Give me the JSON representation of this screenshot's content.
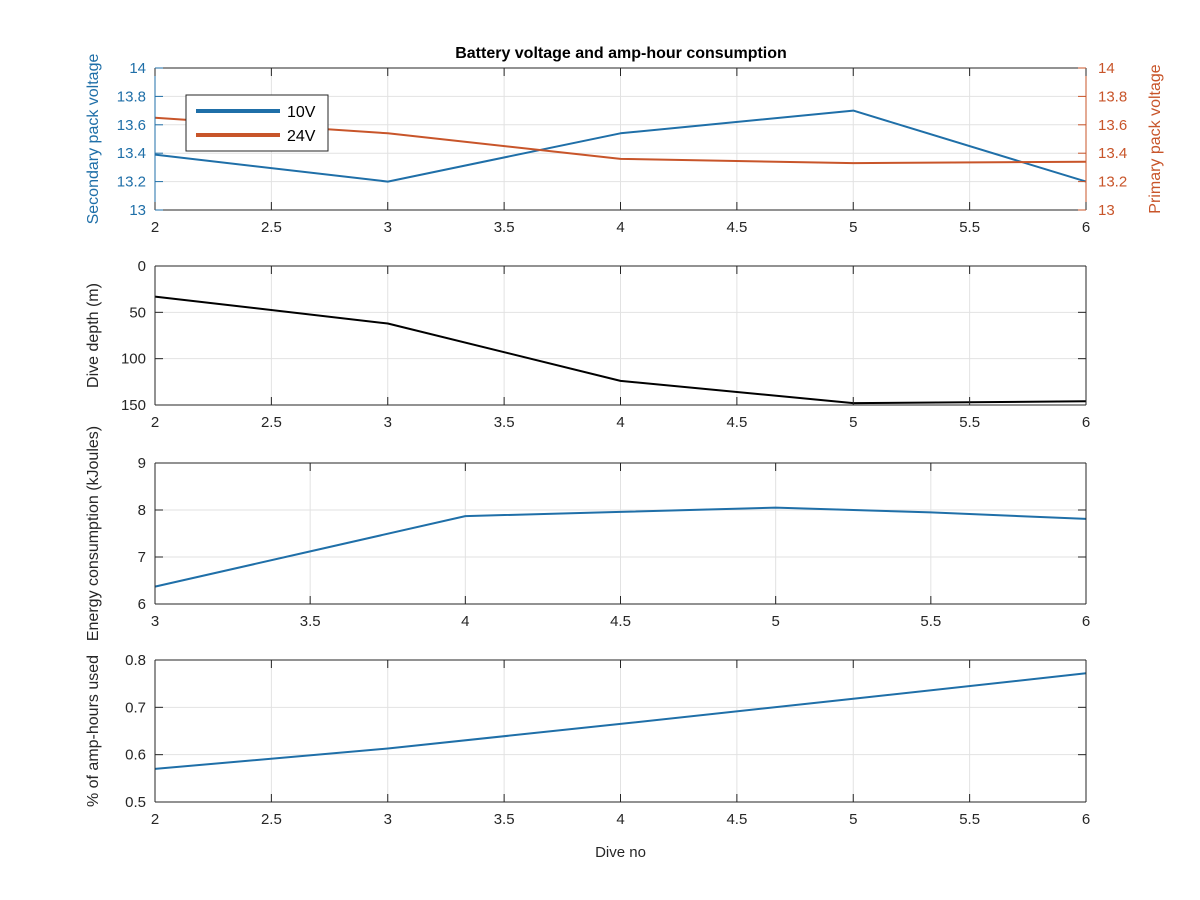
{
  "figure": {
    "background": "#ffffff"
  },
  "chart_data": [
    {
      "type": "line",
      "title": "Battery voltage and amp-hour consumption",
      "xlabel": "",
      "ylabel": "Secondary pack voltage",
      "ylabel_right": "Primary pack voltage",
      "xlim": [
        2,
        6
      ],
      "ylim": [
        13,
        14
      ],
      "ylim_right": [
        13,
        14
      ],
      "xticks": [
        "2",
        "2.5",
        "3",
        "3.5",
        "4",
        "4.5",
        "5",
        "5.5",
        "6"
      ],
      "yticks": [
        "13",
        "13.2",
        "13.4",
        "13.6",
        "13.8",
        "14"
      ],
      "yticks_right": [
        "13",
        "13.2",
        "13.4",
        "13.6",
        "13.8",
        "14"
      ],
      "grid": true,
      "legend": {
        "position": "top-left",
        "entries": [
          "10V",
          "24V"
        ]
      },
      "series": [
        {
          "name": "10V",
          "axis": "left",
          "color": "#1f6fa8",
          "x": [
            2,
            3,
            4,
            5,
            6
          ],
          "values": [
            13.39,
            13.2,
            13.54,
            13.7,
            13.2
          ]
        },
        {
          "name": "24V",
          "axis": "right",
          "color": "#c8552a",
          "x": [
            2,
            3,
            4,
            5,
            6
          ],
          "values": [
            13.65,
            13.54,
            13.36,
            13.33,
            13.34
          ]
        }
      ]
    },
    {
      "type": "line",
      "title": "",
      "xlabel": "",
      "ylabel": "Dive depth (m)",
      "xlim": [
        2,
        6
      ],
      "ylim": [
        0,
        150
      ],
      "y_reversed": true,
      "xticks": [
        "2",
        "2.5",
        "3",
        "3.5",
        "4",
        "4.5",
        "5",
        "5.5",
        "6"
      ],
      "yticks": [
        "0",
        "50",
        "100",
        "150"
      ],
      "grid": true,
      "series": [
        {
          "color": "#000000",
          "x": [
            2,
            3,
            4,
            5,
            6
          ],
          "values": [
            33,
            62,
            124,
            148,
            146
          ]
        }
      ]
    },
    {
      "type": "line",
      "title": "",
      "xlabel": "",
      "ylabel": "Energy consumption (kJoules)",
      "xlim": [
        3,
        6
      ],
      "ylim": [
        6,
        9
      ],
      "xticks": [
        "3",
        "3.5",
        "4",
        "4.5",
        "5",
        "5.5",
        "6"
      ],
      "yticks": [
        "6",
        "7",
        "8",
        "9"
      ],
      "grid": true,
      "series": [
        {
          "color": "#1f6fa8",
          "x": [
            3,
            3.5,
            4,
            4.5,
            5,
            5.5,
            6
          ],
          "values": [
            6.37,
            7.12,
            7.87,
            7.96,
            8.05,
            7.95,
            7.81
          ]
        }
      ]
    },
    {
      "type": "line",
      "title": "",
      "xlabel": "Dive no",
      "ylabel": "% of amp-hours used",
      "xlim": [
        2,
        6
      ],
      "ylim": [
        0.5,
        0.8
      ],
      "xticks": [
        "2",
        "2.5",
        "3",
        "3.5",
        "4",
        "4.5",
        "5",
        "5.5",
        "6"
      ],
      "yticks": [
        "0.5",
        "0.6",
        "0.7",
        "0.8"
      ],
      "grid": true,
      "series": [
        {
          "color": "#1f6fa8",
          "x": [
            2,
            3,
            4,
            5,
            6
          ],
          "values": [
            0.57,
            0.613,
            0.665,
            0.718,
            0.772
          ]
        }
      ]
    }
  ]
}
